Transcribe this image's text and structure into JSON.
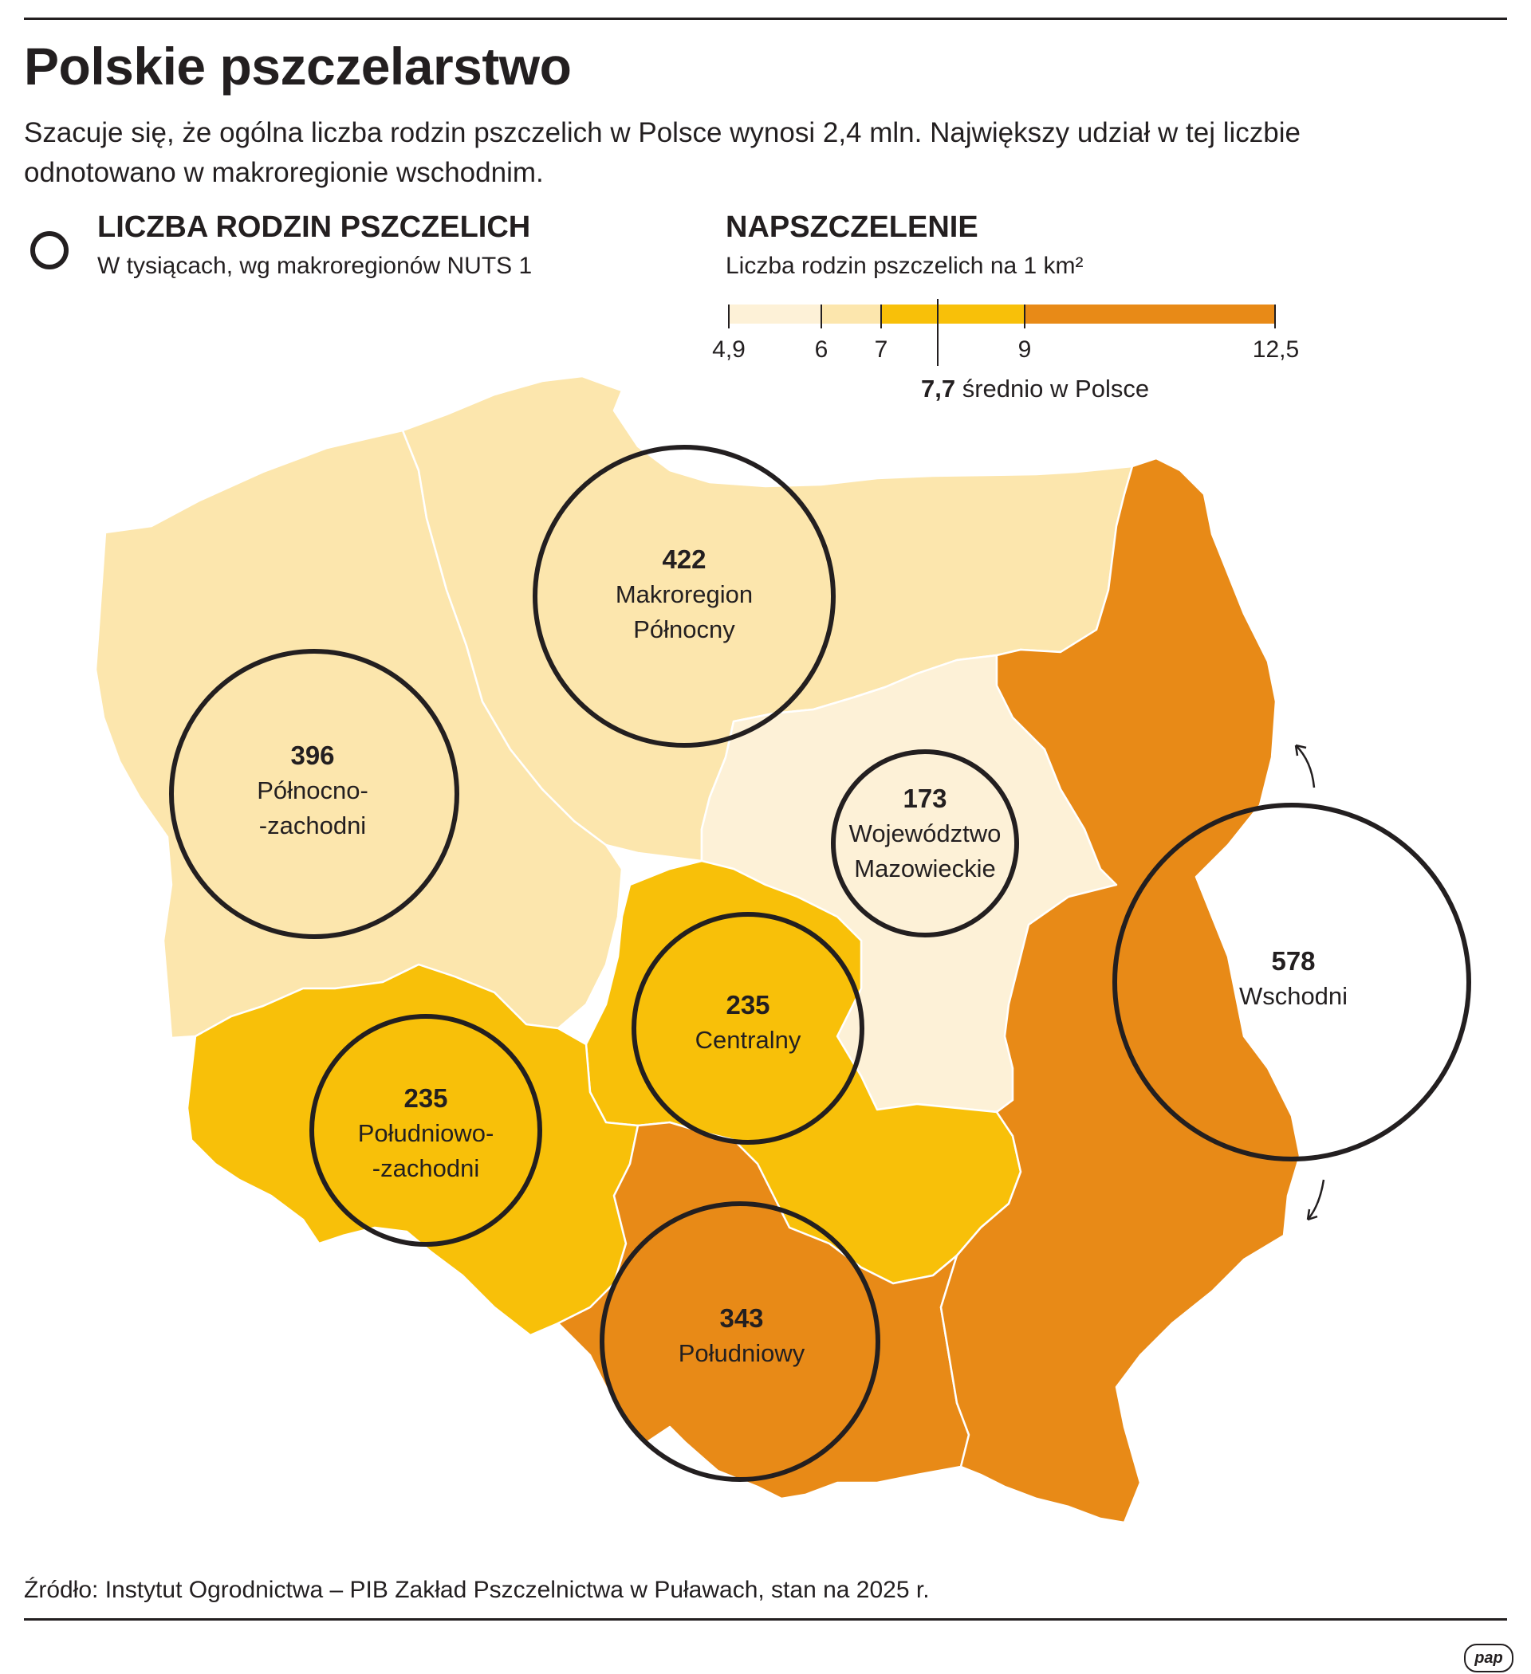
{
  "title": "Polskie pszczelarstwo",
  "subtitle": "Szacuje się, że ogólna liczba rodzin pszczelich w Polsce wynosi 2,4 mln. Największy udział w tej liczbie odnotowano w makroregionie wschodnim.",
  "legend_circle": {
    "title": "LICZBA RODZIN PSZCZELICH",
    "subtitle": "W tysiącach, wg makroregionów NUTS 1"
  },
  "legend_density": {
    "title": "NAPSZCZELENIE",
    "subtitle": "Liczba rodzin pszczelich na 1 km²",
    "breaks": [
      "4,9",
      "6",
      "7",
      "9",
      "12,5"
    ],
    "colors": [
      "#fdf1d7",
      "#fce6ad",
      "#f8c009",
      "#e88a17"
    ],
    "average_value": "7,7",
    "average_text": "średnio w Polsce"
  },
  "regions": [
    {
      "id": "polnocny",
      "value": "422",
      "name_lines": [
        "Makroregion",
        "Północny"
      ],
      "color": "#fce6ad"
    },
    {
      "id": "polnocno-zachodni",
      "value": "396",
      "name_lines": [
        "Północno-",
        "-zachodni"
      ],
      "color": "#fce6ad"
    },
    {
      "id": "mazowieckie",
      "value": "173",
      "name_lines": [
        "Województwo",
        "Mazowieckie"
      ],
      "color": "#fdf1d7"
    },
    {
      "id": "centralny",
      "value": "235",
      "name_lines": [
        "Centralny"
      ],
      "color": "#f8c009"
    },
    {
      "id": "poludniowo-zachodni",
      "value": "235",
      "name_lines": [
        "Południowo-",
        "-zachodni"
      ],
      "color": "#f8c009"
    },
    {
      "id": "poludniowy",
      "value": "343",
      "name_lines": [
        "Południowy"
      ],
      "color": "#e88a17"
    },
    {
      "id": "wschodni",
      "value": "578",
      "name_lines": [
        "Wschodni"
      ],
      "color": "#e88a17"
    }
  ],
  "source": "Źródło: Instytut Ogrodnictwa – PIB Zakład Pszczelnictwa w Puławach, stan na 2025 r.",
  "logo": "pap"
}
